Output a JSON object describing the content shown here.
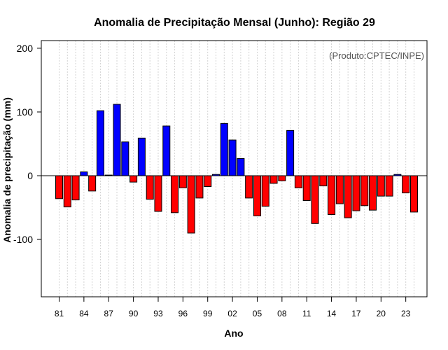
{
  "chart_data": {
    "type": "bar",
    "title": "Anomalia de Precipitação Mensal (Junho): Região 29",
    "xlabel": "Ano",
    "ylabel": "Anomalia de precipitação (mm)",
    "credit": "(Produto:CPTEC/INPE)",
    "ylim": [
      -190,
      212
    ],
    "yticks": [
      -100,
      0,
      100,
      200
    ],
    "xtick_labels": [
      "81",
      "84",
      "87",
      "90",
      "93",
      "96",
      "99",
      "02",
      "05",
      "08",
      "11",
      "14",
      "17",
      "20",
      "23"
    ],
    "xtick_every": 3,
    "positive_color": "#0000ff",
    "negative_color": "#ff0000",
    "grid": true,
    "categories": [
      "1981",
      "1982",
      "1983",
      "1984",
      "1985",
      "1986",
      "1987",
      "1988",
      "1989",
      "1990",
      "1991",
      "1992",
      "1993",
      "1994",
      "1995",
      "1996",
      "1997",
      "1998",
      "1999",
      "2000",
      "2001",
      "2002",
      "2003",
      "2004",
      "2005",
      "2006",
      "2007",
      "2008",
      "2009",
      "2010",
      "2011",
      "2012",
      "2013",
      "2014",
      "2015",
      "2016",
      "2017",
      "2018",
      "2019",
      "2020",
      "2021",
      "2022",
      "2023",
      "2024"
    ],
    "values": [
      -36,
      -49,
      -38,
      6,
      -24,
      102,
      1,
      112,
      53,
      -10,
      59,
      -37,
      -56,
      78,
      -58,
      -19,
      -90,
      -35,
      -17,
      2,
      82,
      56,
      27,
      -35,
      -63,
      -48,
      -12,
      -8,
      71,
      -19,
      -39,
      -75,
      -16,
      -61,
      -44,
      -66,
      -55,
      -47,
      -54,
      -32,
      -32,
      2,
      -27,
      -57
    ]
  }
}
